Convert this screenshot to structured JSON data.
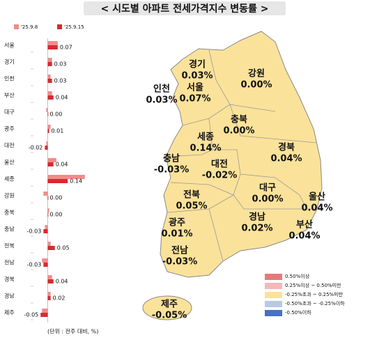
{
  "title": "< 시도별 아파트 전세가격지수 변동률 >",
  "chart_data": [
    {
      "type": "hbar",
      "categories": [
        "서울",
        "경기",
        "인천",
        "부산",
        "대구",
        "광주",
        "대전",
        "울산",
        "세종",
        "강원",
        "충북",
        "충남",
        "전북",
        "전남",
        "경북",
        "경남",
        "제주"
      ],
      "series": [
        {
          "name": "'25.9.8",
          "color": "#f28b8b",
          "values": [
            0.07,
            0.03,
            0.02,
            0.03,
            -0.01,
            0.02,
            -0.01,
            0.06,
            0.26,
            -0.03,
            0.01,
            -0.02,
            0.02,
            -0.04,
            0.03,
            0.02,
            -0.04
          ]
        },
        {
          "name": "'25.9.15",
          "color": "#d9292f",
          "values": [
            0.07,
            0.03,
            0.03,
            0.04,
            0.0,
            0.01,
            -0.02,
            0.04,
            0.14,
            0.0,
            0.0,
            -0.03,
            0.05,
            -0.03,
            0.04,
            0.02,
            -0.05
          ],
          "value_labels": [
            "0.07",
            "0.03",
            "0.03",
            "0.04",
            "0.00",
            "0.01",
            "-0.02",
            "0.04",
            "0.14",
            "0.00",
            "0.00",
            "-0.03",
            "0.05",
            "-0.03",
            "0.04",
            "0.02",
            "-0.05"
          ]
        }
      ],
      "xlim": [
        -0.1,
        0.3
      ],
      "note": "(단위 : 전주 대비, %)"
    },
    {
      "type": "choropleth",
      "regions": [
        "경기",
        "강원",
        "인천",
        "서울",
        "충북",
        "세종",
        "충남",
        "대전",
        "경북",
        "대구",
        "울산",
        "전북",
        "경남",
        "부산",
        "광주",
        "전남",
        "제주"
      ],
      "values": [
        0.03,
        0.0,
        0.03,
        0.07,
        0.0,
        0.14,
        -0.03,
        -0.02,
        0.04,
        0.0,
        0.04,
        0.05,
        0.02,
        0.04,
        0.01,
        -0.03,
        -0.05
      ],
      "value_labels": [
        "0.03%",
        "0.00%",
        "0.03%",
        "0.07%",
        "0.00%",
        "0.14%",
        "-0.03%",
        "-0.02%",
        "0.04%",
        "0.00%",
        "0.04%",
        "0.05%",
        "0.02%",
        "0.04%",
        "0.01%",
        "-0.03%",
        "-0.05%"
      ],
      "legend": [
        {
          "label": "0.50%이상",
          "color": "#e87a7a"
        },
        {
          "label": "0.25%이상 ~ 0.50%미만",
          "color": "#f5b8b8"
        },
        {
          "label": "-0.25%초과 ~ 0.25%미만",
          "color": "#fbe29a"
        },
        {
          "label": "-0.50%초과 ~ -0.25%이하",
          "color": "#b8c8e8"
        },
        {
          "label": "-0.50%이하",
          "color": "#4472c4"
        }
      ]
    }
  ]
}
